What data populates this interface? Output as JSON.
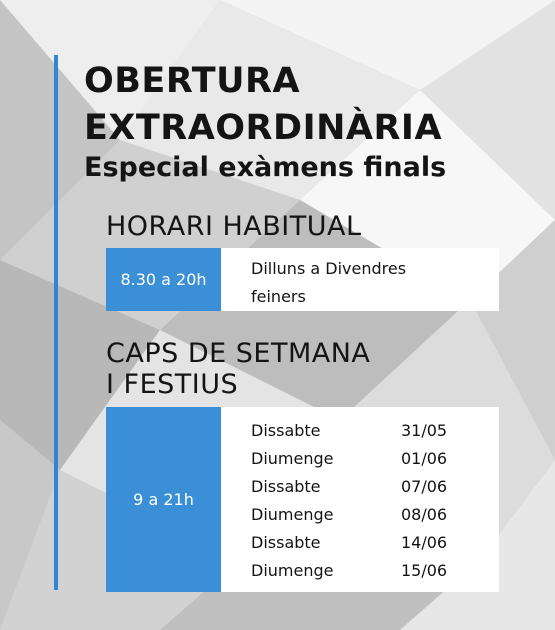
{
  "title": {
    "line1": "OBERTURA",
    "line2": "EXTRAORDINÀRIA",
    "subtitle": "Especial exàmens finals"
  },
  "regular_hours": {
    "heading": "HORARI HABITUAL",
    "hours": "8.30 a 20h",
    "days_line1": "Dilluns a Divendres",
    "days_line2": "feiners"
  },
  "weekends": {
    "heading_line1": "CAPS DE SETMANA",
    "heading_line2": "I FESTIUS",
    "hours": "9 a 21h",
    "dates": [
      {
        "day": "Dissabte",
        "date": "31/05"
      },
      {
        "day": "Diumenge",
        "date": "01/06"
      },
      {
        "day": "Dissabte",
        "date": "07/06"
      },
      {
        "day": "Diumenge",
        "date": "08/06"
      },
      {
        "day": "Dissabte",
        "date": "14/06"
      },
      {
        "day": "Diumenge",
        "date": "15/06"
      }
    ]
  },
  "colors": {
    "accent": "#2f86d3",
    "hours_box": "#3a8fd6",
    "text": "#141414"
  }
}
